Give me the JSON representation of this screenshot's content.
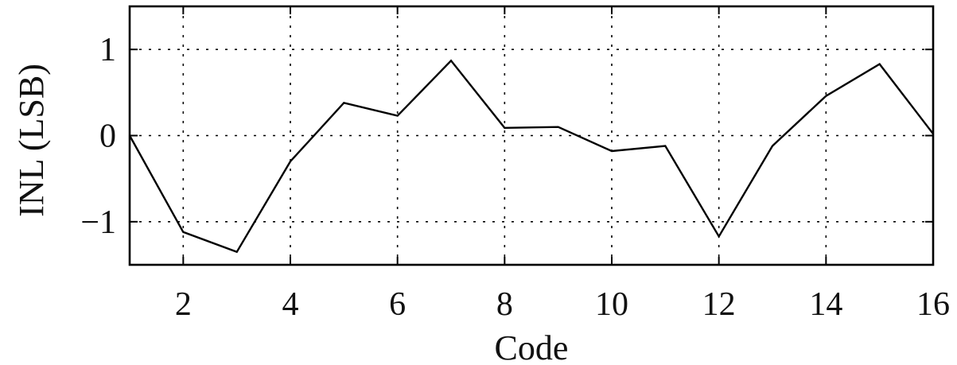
{
  "chart_data": {
    "type": "line",
    "title": "",
    "xlabel": "Code",
    "ylabel": "INL (LSB)",
    "xlim": [
      1,
      16
    ],
    "ylim": [
      -1.5,
      1.5
    ],
    "grid": true,
    "x_ticks": [
      2,
      4,
      6,
      8,
      10,
      12,
      14,
      16
    ],
    "x_tick_labels": [
      "2",
      "4",
      "6",
      "8",
      "10",
      "12",
      "14",
      "16"
    ],
    "y_ticks": [
      -1,
      0,
      1
    ],
    "y_tick_labels": [
      "−1",
      "0",
      "1"
    ],
    "series": [
      {
        "x": [
          1,
          2,
          3,
          4,
          5,
          6,
          7,
          8,
          9,
          10,
          11,
          12,
          13,
          14,
          15,
          16
        ],
        "values": [
          0.0,
          -1.12,
          -1.35,
          -0.3,
          0.38,
          0.23,
          0.87,
          0.09,
          0.1,
          -0.18,
          -0.12,
          -1.17,
          -0.12,
          0.46,
          0.83,
          0.02
        ],
        "color": "#000000"
      }
    ]
  }
}
